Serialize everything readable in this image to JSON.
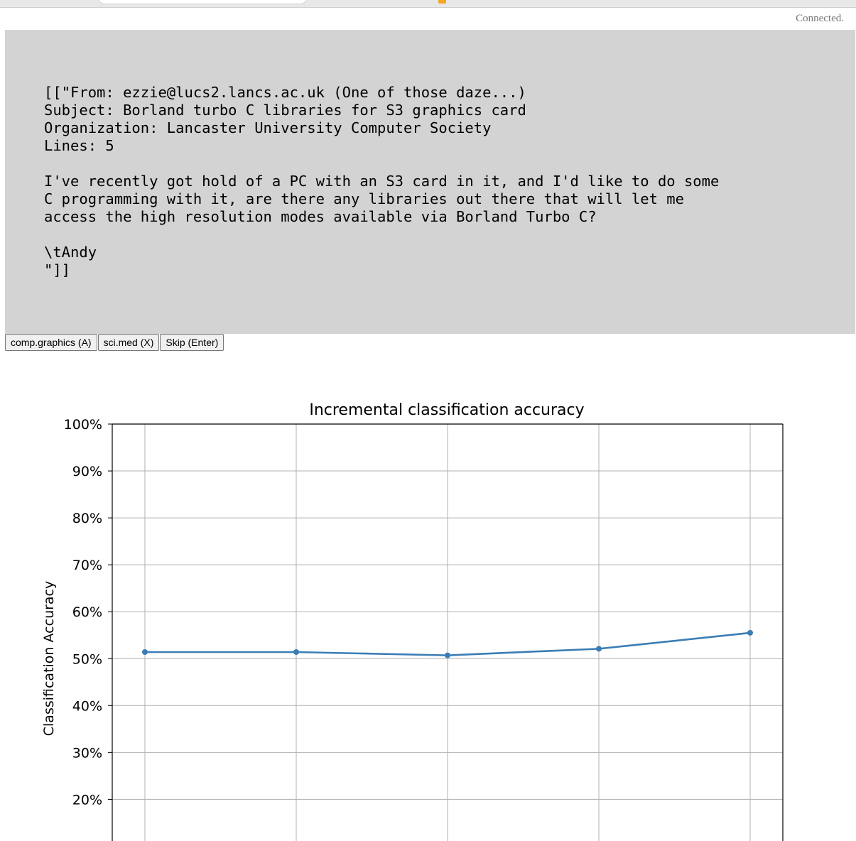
{
  "status": {
    "text": "Connected."
  },
  "message": {
    "text": "[[\"From: ezzie@lucs2.lancs.ac.uk (One of those daze...)\nSubject: Borland turbo C libraries for S3 graphics card\nOrganization: Lancaster University Computer Society\nLines: 5\n\nI've recently got hold of a PC with an S3 card in it, and I'd like to do some\nC programming with it, are there any libraries out there that will let me\naccess the high resolution modes available via Borland Turbo C?\n\n\\tAndy\n\"]]"
  },
  "buttons": [
    {
      "label": "comp.graphics (A)"
    },
    {
      "label": "sci.med (X)"
    },
    {
      "label": "Skip (Enter)"
    }
  ],
  "chart_data": {
    "type": "line",
    "title": "Incremental classification accuracy",
    "xlabel": "",
    "ylabel": "Classification Accuracy",
    "x": [
      1,
      2,
      3,
      4,
      5
    ],
    "series": [
      {
        "values": [
          51.4,
          51.4,
          50.7,
          52.1,
          55.5
        ],
        "color": "#3a7db5"
      }
    ],
    "yticks": [
      "100%",
      "90%",
      "80%",
      "70%",
      "60%",
      "50%",
      "40%",
      "30%",
      "20%"
    ],
    "ylim": [
      10,
      100
    ],
    "grid": true
  }
}
